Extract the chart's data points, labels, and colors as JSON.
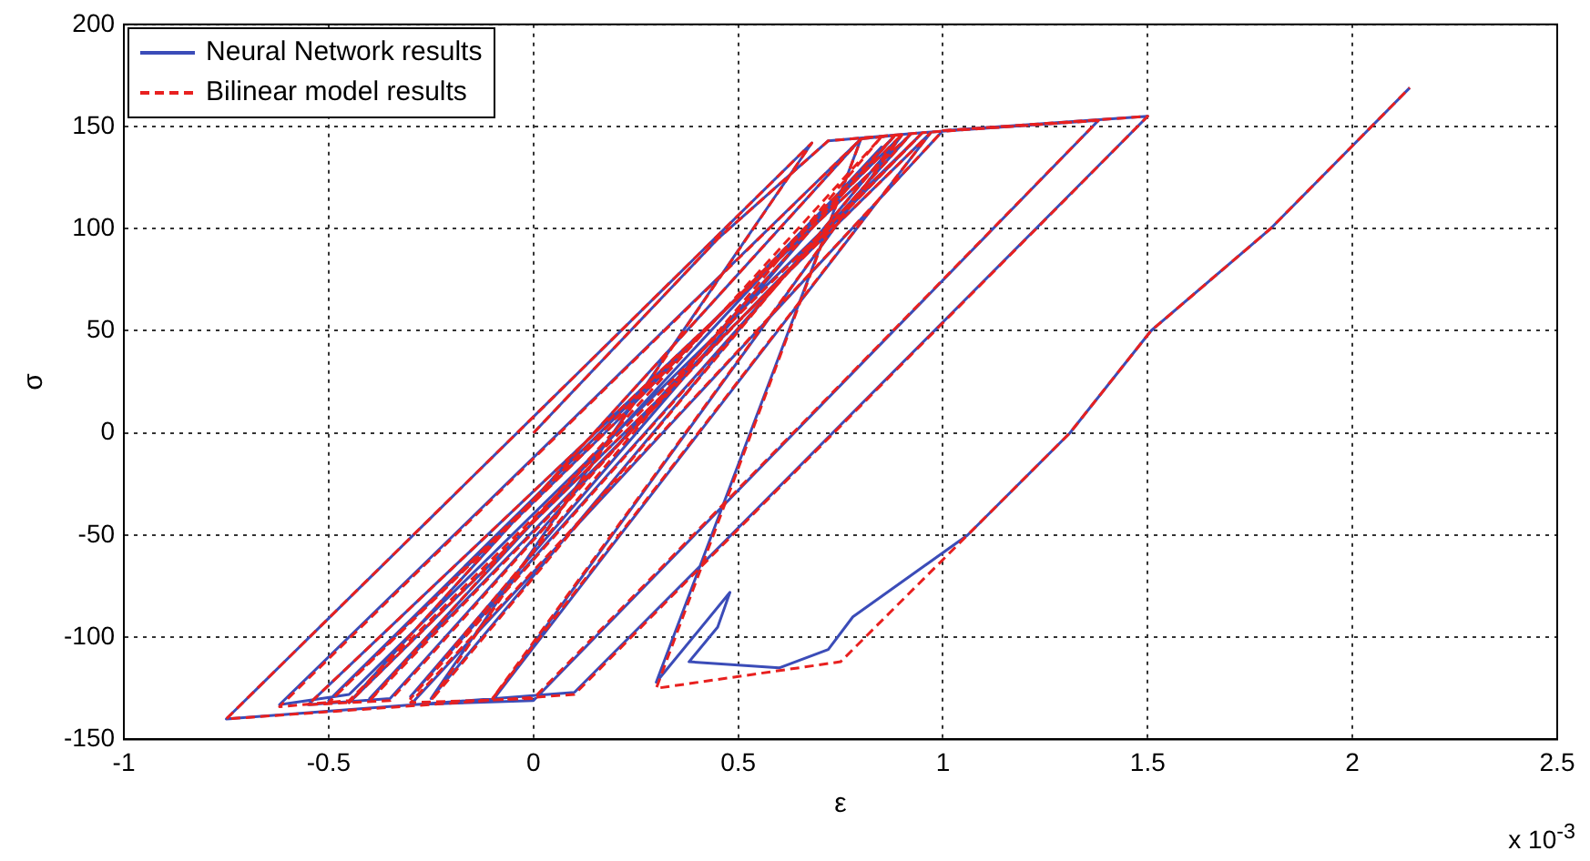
{
  "chart_data": {
    "type": "line",
    "xlabel": "ε",
    "ylabel": "σ",
    "annotations": [
      "x 10$^{-3}$"
    ],
    "xlim": [
      -1,
      2.5
    ],
    "xticks": [
      -1,
      -0.5,
      0,
      0.5,
      1,
      1.5,
      2,
      2.5
    ],
    "ylim": [
      -150,
      200
    ],
    "yticks": [
      -150,
      -100,
      -50,
      0,
      50,
      100,
      150,
      200
    ],
    "grid": true,
    "legend": "top left",
    "marker": "none",
    "series": [
      {
        "name": "Neural Network results",
        "color": "#3b4cb8",
        "line_style": "solid",
        "x": [
          0,
          0.45,
          0.72,
          0.95,
          -0.45,
          -0.62,
          0.8,
          0.9,
          -0.5,
          0.2,
          0.88,
          -0.35,
          -0.55,
          0.92,
          -0.3,
          0.85,
          -0.4,
          0.95,
          1.38,
          0.0,
          -0.3,
          1.0,
          1.5,
          0.1,
          -0.75,
          0.68,
          -0.25,
          0.9,
          -0.1,
          0.97,
          -0.45,
          0.8,
          0.3,
          0.48,
          0.45,
          0.38,
          0.6,
          0.72,
          0.78,
          1.06,
          1.31,
          1.508,
          1.8,
          2.14
        ],
        "values": [
          0,
          95,
          143,
          147,
          -128,
          -133,
          144,
          146,
          -131,
          5,
          145,
          -130,
          -133,
          146,
          -129,
          140,
          -130,
          147,
          153,
          -131,
          -133,
          148,
          155,
          -127,
          -140,
          142,
          -130,
          146,
          -131,
          147,
          -132,
          144,
          -122,
          -78,
          -95,
          -112,
          -115,
          -106,
          -90,
          -50,
          0,
          50,
          100,
          169
        ]
      },
      {
        "name": "Bilinear model results",
        "color": "#e8201f",
        "line_style": "dashed",
        "x": [
          0,
          0.45,
          0.72,
          0.95,
          -0.45,
          -0.62,
          0.8,
          0.9,
          -0.5,
          0.2,
          0.88,
          -0.35,
          -0.55,
          0.92,
          -0.3,
          0.85,
          -0.4,
          0.95,
          1.38,
          0.0,
          -0.3,
          1.0,
          1.5,
          0.1,
          -0.75,
          0.68,
          -0.25,
          0.9,
          -0.1,
          0.97,
          -0.45,
          0.8,
          0.3,
          0.75,
          1.06,
          1.31,
          1.508,
          1.8,
          2.14
        ],
        "values": [
          0,
          95,
          143,
          147,
          -131,
          -134,
          144,
          146,
          -132,
          5,
          145,
          -131,
          -133,
          146,
          -130,
          145,
          -131,
          147,
          153,
          -130,
          -132,
          148,
          155,
          -128,
          -140,
          142,
          -131,
          146,
          -130,
          147,
          -132,
          144,
          -125,
          -112,
          -50,
          0,
          50,
          100,
          169
        ]
      }
    ]
  }
}
